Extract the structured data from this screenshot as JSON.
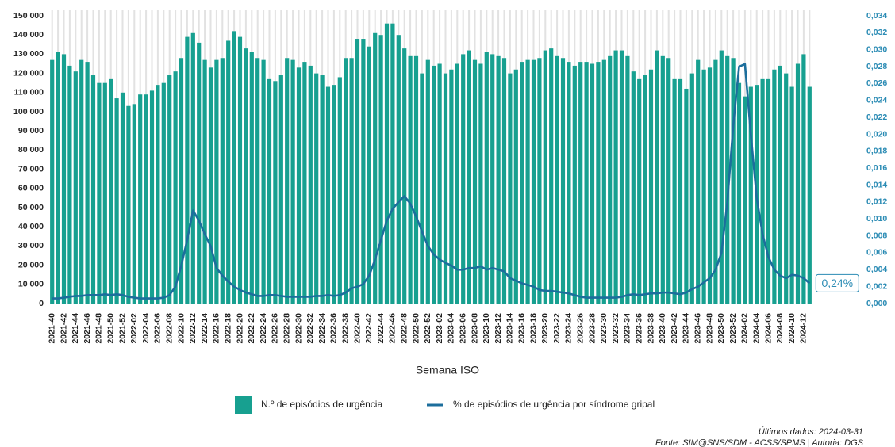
{
  "chart_data": {
    "type": "bar-line",
    "x_label": "Semana ISO",
    "categories": [
      "2021-40",
      null,
      "2021-42",
      null,
      "2021-44",
      null,
      "2021-46",
      null,
      "2021-48",
      null,
      "2021-50",
      null,
      "2021-52",
      null,
      "2022-02",
      null,
      "2022-04",
      null,
      "2022-06",
      null,
      "2022-08",
      null,
      "2022-10",
      null,
      "2022-12",
      null,
      "2022-14",
      null,
      "2022-16",
      null,
      "2022-18",
      null,
      "2022-20",
      null,
      "2022-22",
      null,
      "2022-24",
      null,
      "2022-26",
      null,
      "2022-28",
      null,
      "2022-30",
      null,
      "2022-32",
      null,
      "2022-34",
      null,
      "2022-36",
      null,
      "2022-38",
      null,
      "2022-40",
      null,
      "2022-42",
      null,
      "2022-44",
      null,
      "2022-46",
      null,
      "2022-48",
      null,
      "2022-50",
      null,
      "2022-52",
      null,
      "2023-02",
      null,
      "2023-04",
      null,
      "2023-06",
      null,
      "2023-08",
      null,
      "2023-10",
      null,
      "2023-12",
      null,
      "2023-14",
      null,
      "2023-16",
      null,
      "2023-18",
      null,
      "2023-20",
      null,
      "2023-22",
      null,
      "2023-24",
      null,
      "2023-26",
      null,
      "2023-28",
      null,
      "2023-30",
      null,
      "2023-32",
      null,
      "2023-34",
      null,
      "2023-36",
      null,
      "2023-38",
      null,
      "2023-40",
      null,
      "2023-42",
      null,
      "2023-44",
      null,
      "2023-46",
      null,
      "2023-48",
      null,
      "2023-50",
      null,
      "2023-52",
      null,
      "2024-02",
      null,
      "2024-04",
      null,
      "2024-06",
      null,
      "2024-08",
      null,
      "2024-10",
      null,
      "2024-12",
      null
    ],
    "series": [
      {
        "name": "N.º de episódios de urgência",
        "color": "#17a090",
        "axis": "y",
        "values": [
          127000,
          131000,
          130000,
          124000,
          121000,
          127000,
          126000,
          119000,
          115000,
          115000,
          117000,
          107000,
          110000,
          103000,
          104000,
          109000,
          109000,
          111000,
          114000,
          115000,
          119000,
          121000,
          128000,
          139000,
          141000,
          136000,
          127000,
          123000,
          127000,
          128000,
          137000,
          142000,
          139000,
          133000,
          131000,
          128000,
          127000,
          117000,
          116000,
          119000,
          128000,
          127000,
          123000,
          126000,
          124000,
          120000,
          119000,
          113000,
          114000,
          118000,
          128000,
          128000,
          138000,
          138000,
          134000,
          141000,
          140000,
          146000,
          146000,
          140000,
          133000,
          129000,
          129000,
          120000,
          127000,
          124000,
          125000,
          120000,
          122000,
          125000,
          130000,
          132000,
          127000,
          125000,
          131000,
          130000,
          129000,
          128000,
          120000,
          122000,
          126000,
          127000,
          127000,
          128000,
          132000,
          133000,
          129000,
          128000,
          126000,
          124000,
          126000,
          126000,
          125000,
          126000,
          127000,
          129000,
          132000,
          132000,
          129000,
          121000,
          117000,
          119000,
          122000,
          132000,
          129000,
          128000,
          117000,
          117000,
          112000,
          120000,
          127000,
          122000,
          123000,
          127000,
          132000,
          129000,
          128000,
          115000,
          108000,
          113000,
          114000,
          117000,
          117000,
          122000,
          124000,
          120000,
          113000,
          125000,
          130000,
          113000
        ]
      },
      {
        "name": "% de episódios de urgência por síndrome gripal",
        "color": "#1c6e9c",
        "axis": "y2",
        "values": [
          0.0006,
          0.0006,
          0.0007,
          0.0008,
          0.0009,
          0.0009,
          0.001,
          0.001,
          0.001,
          0.0011,
          0.001,
          0.0011,
          0.001,
          0.0008,
          0.0007,
          0.0006,
          0.0006,
          0.0006,
          0.0006,
          0.0007,
          0.001,
          0.002,
          0.0045,
          0.0075,
          0.011,
          0.0098,
          0.0082,
          0.0068,
          0.0042,
          0.0033,
          0.0026,
          0.002,
          0.0016,
          0.0013,
          0.0011,
          0.0009,
          0.0009,
          0.001,
          0.001,
          0.0009,
          0.0008,
          0.0008,
          0.0008,
          0.0008,
          0.0008,
          0.0009,
          0.0009,
          0.001,
          0.0009,
          0.001,
          0.0013,
          0.0018,
          0.002,
          0.0023,
          0.0033,
          0.0052,
          0.0075,
          0.0098,
          0.0112,
          0.012,
          0.0127,
          0.0118,
          0.0103,
          0.0085,
          0.0068,
          0.0058,
          0.0052,
          0.0048,
          0.0045,
          0.004,
          0.004,
          0.0042,
          0.0042,
          0.0044,
          0.004,
          0.0042,
          0.004,
          0.0038,
          0.003,
          0.0027,
          0.0024,
          0.0022,
          0.002,
          0.0016,
          0.0015,
          0.0015,
          0.0014,
          0.0013,
          0.0012,
          0.001,
          0.0008,
          0.0007,
          0.0007,
          0.0007,
          0.0007,
          0.0007,
          0.0007,
          0.0008,
          0.001,
          0.0011,
          0.001,
          0.0011,
          0.0012,
          0.0012,
          0.0013,
          0.0013,
          0.0012,
          0.0011,
          0.0013,
          0.0017,
          0.002,
          0.0025,
          0.003,
          0.004,
          0.006,
          0.012,
          0.021,
          0.028,
          0.0283,
          0.02,
          0.0125,
          0.0082,
          0.0055,
          0.004,
          0.0033,
          0.003,
          0.0034,
          0.0033,
          0.003,
          0.0024
        ],
        "value_labels": [
          null,
          null,
          null,
          null,
          null,
          null,
          null,
          null,
          null,
          null,
          null,
          null,
          null,
          null,
          null,
          null,
          null,
          null,
          null,
          null,
          null,
          null,
          null,
          null,
          null,
          null,
          null,
          null,
          null,
          null,
          null,
          null,
          null,
          null,
          null,
          null,
          null,
          null,
          null,
          null,
          null,
          null,
          null,
          null,
          null,
          null,
          null,
          null,
          null,
          null,
          null,
          null,
          null,
          null,
          null,
          null,
          null,
          null,
          null,
          null,
          null,
          null,
          null,
          null,
          null,
          null,
          null,
          null,
          null,
          null,
          null,
          null,
          null,
          null,
          null,
          null,
          null,
          null,
          null,
          null,
          null,
          null,
          null,
          null,
          null,
          null,
          null,
          null,
          null,
          null,
          null,
          null,
          null,
          null,
          null,
          null,
          null,
          null,
          null,
          null,
          null,
          null,
          null,
          null,
          null,
          null,
          null,
          null,
          null,
          null,
          null,
          null,
          null,
          null,
          null,
          null,
          null,
          null,
          null,
          null,
          null,
          null,
          null,
          null,
          null,
          null,
          null,
          null,
          null,
          "0,24%"
        ]
      }
    ],
    "ylim": [
      0,
      150000
    ],
    "yticks": [
      0,
      {
        "value": 10000,
        "label": "10 000"
      },
      {
        "value": 20000,
        "label": "20 000"
      },
      {
        "value": 30000,
        "label": "30 000"
      },
      {
        "value": 40000,
        "label": "40 000"
      },
      {
        "value": 50000,
        "label": "50 000"
      },
      {
        "value": 60000,
        "label": "60 000"
      },
      {
        "value": 70000,
        "label": "70 000"
      },
      {
        "value": 80000,
        "label": "80 000"
      },
      {
        "value": 90000,
        "label": "90 000"
      },
      {
        "value": 100000,
        "label": "100 000"
      },
      {
        "value": 110000,
        "label": "110 000"
      },
      {
        "value": 120000,
        "label": "120 000"
      },
      {
        "value": 130000,
        "label": "130 000"
      },
      {
        "value": 140000,
        "label": "140 000"
      },
      {
        "value": 150000,
        "label": "150 000"
      }
    ],
    "y2lim": [
      0,
      0.034
    ],
    "y2ticks": [
      {
        "value": 0,
        "label": "0,000"
      },
      {
        "value": 0.002,
        "label": "0,002"
      },
      {
        "value": 0.004,
        "label": "0,004"
      },
      {
        "value": 0.006,
        "label": "0,006"
      },
      {
        "value": 0.008,
        "label": "0,008"
      },
      {
        "value": 0.01,
        "label": "0,010"
      },
      {
        "value": 0.012,
        "label": "0,012"
      },
      {
        "value": 0.014,
        "label": "0,014"
      },
      {
        "value": 0.016,
        "label": "0,016"
      },
      {
        "value": 0.018,
        "label": "0,018"
      },
      {
        "value": 0.02,
        "label": "0,020"
      },
      {
        "value": 0.022,
        "label": "0,022"
      },
      {
        "value": 0.024,
        "label": "0,024"
      },
      {
        "value": 0.026,
        "label": "0,026"
      },
      {
        "value": 0.028,
        "label": "0,028"
      },
      {
        "value": 0.03,
        "label": "0,030"
      },
      {
        "value": 0.032,
        "label": "0,032"
      },
      {
        "value": 0.034,
        "label": "0,034"
      }
    ],
    "y2_color": "#2a8bb4",
    "xgrid": true,
    "legend": "bottom",
    "footnotes": [
      "Últimos dados: 2024-03-31",
      "Fonte: SIM@SNS/SDM - ACSS/SPMS | Autoria: DGS"
    ]
  }
}
